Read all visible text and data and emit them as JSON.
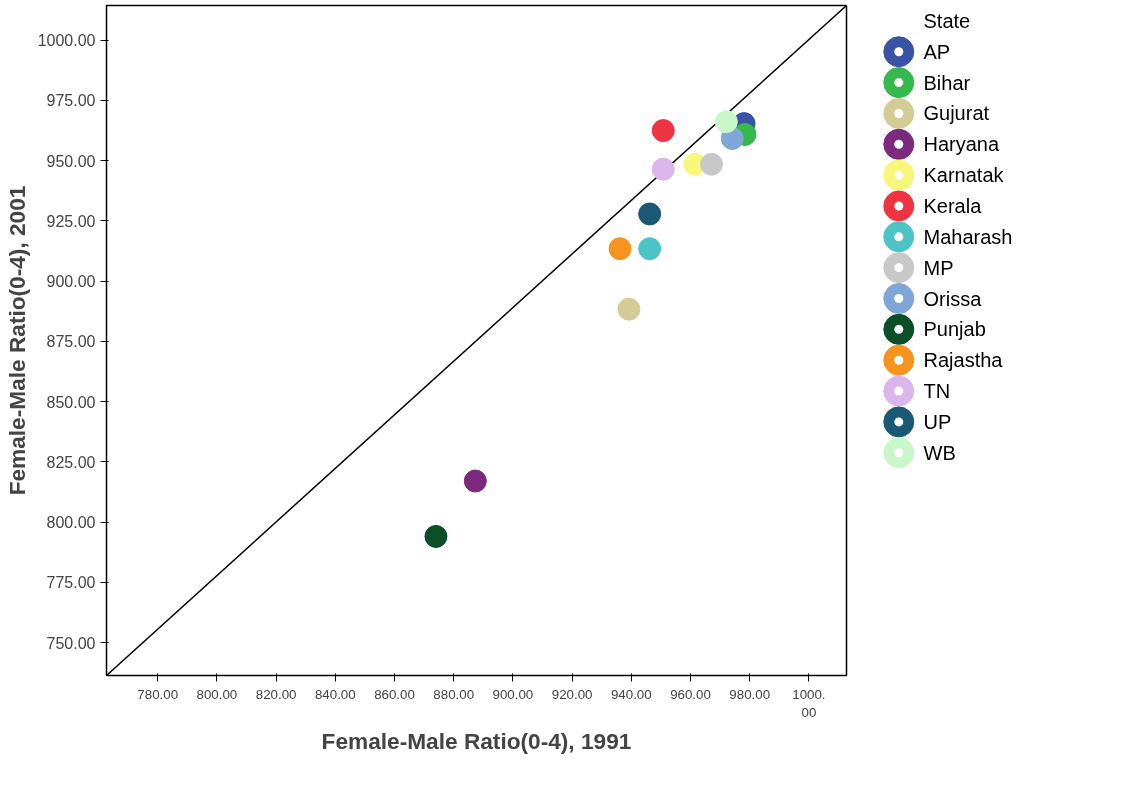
{
  "chart_data": {
    "type": "scatter",
    "xlabel": "Female-Male Ratio(0-4), 1991",
    "ylabel": "Female-Male Ratio(0-4), 2001",
    "legend_title": "State",
    "legend": "right",
    "grid": false,
    "marker": "circle",
    "xlim": [
      762.7,
      1012.7
    ],
    "ylim": [
      736.4,
      1014.4
    ],
    "xticks": [
      {
        "value": 780,
        "label": "780.00"
      },
      {
        "value": 800,
        "label": "800.00"
      },
      {
        "value": 820,
        "label": "820.00"
      },
      {
        "value": 840,
        "label": "840.00"
      },
      {
        "value": 860,
        "label": "860.00"
      },
      {
        "value": 880,
        "label": "880.00"
      },
      {
        "value": 900,
        "label": "900.00"
      },
      {
        "value": 920,
        "label": "920.00"
      },
      {
        "value": 940,
        "label": "940.00"
      },
      {
        "value": 960,
        "label": "960.00"
      },
      {
        "value": 980,
        "label": "980.00"
      },
      {
        "value": 1000,
        "label": "1000.\n00"
      }
    ],
    "yticks": [
      {
        "value": 750,
        "label": "750.00"
      },
      {
        "value": 775,
        "label": "775.00"
      },
      {
        "value": 800,
        "label": "800.00"
      },
      {
        "value": 825,
        "label": "825.00"
      },
      {
        "value": 850,
        "label": "850.00"
      },
      {
        "value": 875,
        "label": "875.00"
      },
      {
        "value": 900,
        "label": "900.00"
      },
      {
        "value": 925,
        "label": "925.00"
      },
      {
        "value": 950,
        "label": "950.00"
      },
      {
        "value": 975,
        "label": "975.00"
      },
      {
        "value": 1000,
        "label": "1000.00"
      }
    ],
    "series": [
      {
        "type": "line",
        "marker": "none",
        "color": "#000000",
        "x": [
          762.7,
          1012.7
        ],
        "values": [
          736.4,
          1014.4
        ]
      },
      {
        "name": "AP",
        "color": "#3a53a4",
        "x": [
          978.1
        ],
        "values": [
          965.4
        ]
      },
      {
        "name": "Bihar",
        "color": "#34b94a",
        "x": [
          978.4
        ],
        "values": [
          960.9
        ]
      },
      {
        "name": "Gujurat",
        "color": "#d4cc97",
        "x": [
          939.2
        ],
        "values": [
          888.4
        ]
      },
      {
        "name": "Haryana",
        "color": "#7b2a7e",
        "x": [
          887.3
        ],
        "values": [
          817.1
        ]
      },
      {
        "name": "Karnatak",
        "color": "#f8f77a",
        "x": [
          961.5
        ],
        "values": [
          948.5
        ]
      },
      {
        "name": "Kerala",
        "color": "#ef3340",
        "x": [
          950.8
        ],
        "values": [
          962.5
        ]
      },
      {
        "name": "Maharash",
        "color": "#4cc4c6",
        "x": [
          946.2
        ],
        "values": [
          913.5
        ]
      },
      {
        "name": "MP",
        "color": "#c8c8c8",
        "x": [
          967.1
        ],
        "values": [
          948.5
        ]
      },
      {
        "name": "Orissa",
        "color": "#7ea7d8",
        "x": [
          974.1
        ],
        "values": [
          959.2
        ]
      },
      {
        "name": "Punjab",
        "color": "#0a4f27",
        "x": [
          874.0
        ],
        "values": [
          794.1
        ]
      },
      {
        "name": "Rajastha",
        "color": "#f7941d",
        "x": [
          936.2
        ],
        "values": [
          913.5
        ]
      },
      {
        "name": "TN",
        "color": "#dab6ec",
        "x": [
          950.8
        ],
        "values": [
          946.5
        ]
      },
      {
        "name": "UP",
        "color": "#1a5873",
        "x": [
          946.2
        ],
        "values": [
          927.9
        ]
      },
      {
        "name": "WB",
        "color": "#c9f7c9",
        "x": [
          972.1
        ],
        "values": [
          966.2
        ]
      }
    ]
  }
}
